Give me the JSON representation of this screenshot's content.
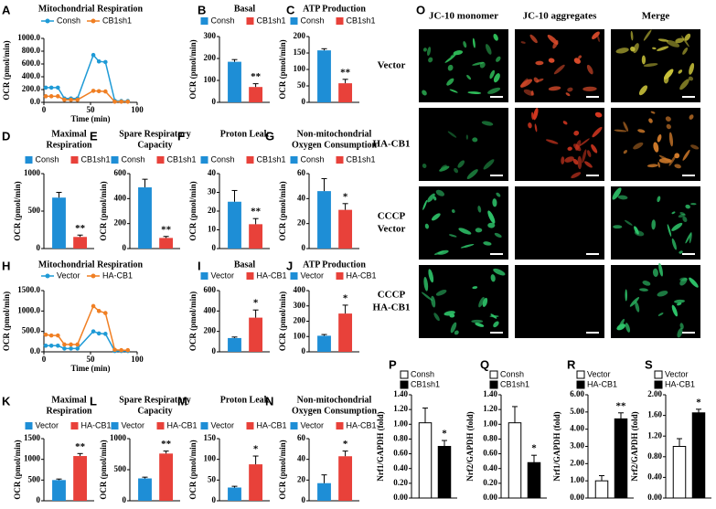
{
  "chart_data": [
    {
      "type": "line",
      "label": "A",
      "title": "Mitochondrial Respiration",
      "xlabel": "Time (min)",
      "ylabel": "OCR (pmol/min)",
      "x": [
        2,
        8,
        15,
        22,
        29,
        36,
        53,
        59,
        66,
        76,
        83,
        90
      ],
      "xlim": [
        0,
        100
      ],
      "xticks": [
        0,
        50,
        100
      ],
      "ylim": [
        0,
        1000
      ],
      "yticks": [
        {
          "value": 0,
          "label": "0.0"
        },
        {
          "value": 200,
          "label": "200.0"
        },
        {
          "value": 400,
          "label": "400.0"
        },
        {
          "value": 600,
          "label": "600.0"
        },
        {
          "value": 800,
          "label": "800.0"
        },
        {
          "value": 1000,
          "label": "1000.0"
        }
      ],
      "series": [
        {
          "name": "Consh",
          "color": "#1e9ad6",
          "values": [
            230,
            230,
            230,
            60,
            60,
            60,
            740,
            640,
            630,
            25,
            20,
            20
          ]
        },
        {
          "name": "CB1sh1",
          "color": "#f07f23",
          "values": [
            95,
            95,
            95,
            40,
            40,
            40,
            180,
            175,
            170,
            10,
            10,
            10
          ]
        }
      ]
    },
    {
      "type": "bar",
      "label": "B",
      "title": "Basal",
      "ylabel": "OCR (pmol/min)",
      "ylim": [
        0,
        300
      ],
      "yticks": [
        0,
        100,
        200,
        300
      ],
      "significance": "**",
      "series": [
        {
          "name": "Consh",
          "color": "#1e8ed6",
          "values": [
            185
          ],
          "errors": [
            10
          ]
        },
        {
          "name": "CB1sh1",
          "color": "#e8413a",
          "values": [
            70
          ],
          "errors": [
            15
          ]
        }
      ]
    },
    {
      "type": "bar",
      "label": "C",
      "title": "ATP Production",
      "ylabel": "OCR (pmol/min)",
      "ylim": [
        0,
        200
      ],
      "yticks": [
        0,
        50,
        100,
        150,
        200
      ],
      "significance": "**",
      "series": [
        {
          "name": "Consh",
          "color": "#1e8ed6",
          "values": [
            158
          ],
          "errors": [
            5
          ]
        },
        {
          "name": "CB1sh1",
          "color": "#e8413a",
          "values": [
            58
          ],
          "errors": [
            12
          ]
        }
      ]
    },
    {
      "type": "bar",
      "label": "D",
      "title": [
        "Maximal",
        "Respiration"
      ],
      "ylabel": "OCR (pmol/min)",
      "ylim": [
        0,
        1000
      ],
      "yticks": [
        0,
        500,
        1000
      ],
      "significance": "**",
      "series": [
        {
          "name": "Consh",
          "color": "#1e8ed6",
          "values": [
            680
          ],
          "errors": [
            70
          ]
        },
        {
          "name": "CB1sh1",
          "color": "#e8413a",
          "values": [
            155
          ],
          "errors": [
            25
          ]
        }
      ]
    },
    {
      "type": "bar",
      "label": "E",
      "title": [
        "Spare Respiratory",
        "Capacity"
      ],
      "ylabel": "OCR (pmol/min)",
      "ylim": [
        0,
        600
      ],
      "yticks": [
        0,
        200,
        400,
        600
      ],
      "significance": "**",
      "series": [
        {
          "name": "Consh",
          "color": "#1e8ed6",
          "values": [
            490
          ],
          "errors": [
            65
          ]
        },
        {
          "name": "CB1sh1",
          "color": "#e8413a",
          "values": [
            85
          ],
          "errors": [
            12
          ]
        }
      ]
    },
    {
      "type": "bar",
      "label": "F",
      "title": "Proton Leak",
      "ylabel": "OCR (pmol/min)",
      "ylim": [
        0,
        40
      ],
      "yticks": [
        0,
        10,
        20,
        30,
        40
      ],
      "significance": "**",
      "series": [
        {
          "name": "Consh",
          "color": "#1e8ed6",
          "values": [
            25
          ],
          "errors": [
            6
          ]
        },
        {
          "name": "CB1sh1",
          "color": "#e8413a",
          "values": [
            13
          ],
          "errors": [
            3
          ]
        }
      ]
    },
    {
      "type": "bar",
      "label": "G",
      "title": [
        "Non-mitochondrial",
        "Oxygen Consumption"
      ],
      "ylabel": "OCR (pmol/min)",
      "ylim": [
        0,
        60
      ],
      "yticks": [
        0,
        20,
        40,
        60
      ],
      "significance": "*",
      "series": [
        {
          "name": "Consh",
          "color": "#1e8ed6",
          "values": [
            46
          ],
          "errors": [
            10
          ]
        },
        {
          "name": "CB1sh1",
          "color": "#e8413a",
          "values": [
            31
          ],
          "errors": [
            5
          ]
        }
      ]
    },
    {
      "type": "line",
      "label": "H",
      "title": "Mitochondrial Respiration",
      "xlabel": "Time (min)",
      "ylabel": "OCR (pmol/min)",
      "x": [
        2,
        8,
        15,
        22,
        29,
        36,
        53,
        59,
        66,
        76,
        83,
        90
      ],
      "xlim": [
        0,
        100
      ],
      "xticks": [
        0,
        50,
        100
      ],
      "ylim": [
        0,
        1500
      ],
      "yticks": [
        {
          "value": 0,
          "label": "0.0"
        },
        {
          "value": 500,
          "label": "500.0"
        },
        {
          "value": 1000,
          "label": "1000.0"
        },
        {
          "value": 1500,
          "label": "1500.0"
        }
      ],
      "series": [
        {
          "name": "Vector",
          "color": "#1e9ad6",
          "values": [
            150,
            150,
            150,
            80,
            80,
            80,
            500,
            450,
            440,
            20,
            20,
            20
          ]
        },
        {
          "name": "HA-CB1",
          "color": "#f07f23",
          "values": [
            420,
            400,
            400,
            180,
            180,
            180,
            1120,
            1000,
            950,
            50,
            40,
            40
          ]
        }
      ]
    },
    {
      "type": "bar",
      "label": "I",
      "title": "Basal",
      "ylabel": "OCR (pmol/min)",
      "ylim": [
        0,
        600
      ],
      "yticks": [
        0,
        200,
        400,
        600
      ],
      "significance": "*",
      "series": [
        {
          "name": "Vector",
          "color": "#1e8ed6",
          "values": [
            135
          ],
          "errors": [
            10
          ]
        },
        {
          "name": "HA-CB1",
          "color": "#e8413a",
          "values": [
            335
          ],
          "errors": [
            75
          ]
        }
      ]
    },
    {
      "type": "bar",
      "label": "J",
      "title": "ATP Production",
      "ylabel": "OCR (pmol/min)",
      "ylim": [
        0,
        400
      ],
      "yticks": [
        0,
        100,
        200,
        300,
        400
      ],
      "significance": "*",
      "series": [
        {
          "name": "Vector",
          "color": "#1e8ed6",
          "values": [
            105
          ],
          "errors": [
            8
          ]
        },
        {
          "name": "HA-CB1",
          "color": "#e8413a",
          "values": [
            250
          ],
          "errors": [
            55
          ]
        }
      ]
    },
    {
      "type": "bar",
      "label": "K",
      "title": [
        "Maximal",
        "Respiration"
      ],
      "ylabel": "OCR (pmol/min)",
      "ylim": [
        0,
        1500
      ],
      "yticks": [
        0,
        500,
        1000,
        1500
      ],
      "significance": "**",
      "series": [
        {
          "name": "Vector",
          "color": "#1e8ed6",
          "values": [
            500
          ],
          "errors": [
            25
          ]
        },
        {
          "name": "HA-CB1",
          "color": "#e8413a",
          "values": [
            1080
          ],
          "errors": [
            60
          ]
        }
      ]
    },
    {
      "type": "bar",
      "label": "L",
      "title": [
        "Spare Respiratory",
        "Capacity"
      ],
      "ylabel": "OCR (pmol/min)",
      "ylim": [
        0,
        1000
      ],
      "yticks": [
        0,
        500,
        1000
      ],
      "significance": "**",
      "series": [
        {
          "name": "Vector",
          "color": "#1e8ed6",
          "values": [
            360
          ],
          "errors": [
            20
          ]
        },
        {
          "name": "HA-CB1",
          "color": "#e8413a",
          "values": [
            760
          ],
          "errors": [
            40
          ]
        }
      ]
    },
    {
      "type": "bar",
      "label": "M",
      "title": "Proton Leak",
      "ylabel": "OCR (pmol/min)",
      "ylim": [
        0,
        150
      ],
      "yticks": [
        0,
        50,
        100,
        150
      ],
      "significance": "*",
      "series": [
        {
          "name": "Vector",
          "color": "#1e8ed6",
          "values": [
            32
          ],
          "errors": [
            3
          ]
        },
        {
          "name": "HA-CB1",
          "color": "#e8413a",
          "values": [
            88
          ],
          "errors": [
            20
          ]
        }
      ]
    },
    {
      "type": "bar",
      "label": "N",
      "title": [
        "Non-mitochondrial",
        "Oxygen Consumption"
      ],
      "ylabel": "OCR (pmol/min)",
      "ylim": [
        0,
        60
      ],
      "yticks": [
        0,
        20,
        40,
        60
      ],
      "significance": "*",
      "series": [
        {
          "name": "Vector",
          "color": "#1e8ed6",
          "values": [
            17
          ],
          "errors": [
            8
          ]
        },
        {
          "name": "HA-CB1",
          "color": "#e8413a",
          "values": [
            43
          ],
          "errors": [
            5
          ]
        }
      ]
    },
    {
      "type": "bar",
      "label": "P",
      "ylabel": "Nrf1/GAPDH (fold)",
      "ylim": [
        0,
        1.4
      ],
      "yticks": [
        {
          "value": 0,
          "label": "0.00"
        },
        {
          "value": 0.2,
          "label": "0.20"
        },
        {
          "value": 0.4,
          "label": "0.40"
        },
        {
          "value": 0.6,
          "label": "0.60"
        },
        {
          "value": 0.8,
          "label": "0.80"
        },
        {
          "value": 1.0,
          "label": "1.00"
        },
        {
          "value": 1.2,
          "label": "1.20"
        },
        {
          "value": 1.4,
          "label": "1.40"
        }
      ],
      "significance": "*",
      "series": [
        {
          "name": "Consh",
          "color": "#ffffff",
          "values": [
            1.02
          ],
          "errors": [
            0.2
          ]
        },
        {
          "name": "CB1sh1",
          "color": "#000000",
          "values": [
            0.7
          ],
          "errors": [
            0.08
          ]
        }
      ]
    },
    {
      "type": "bar",
      "label": "Q",
      "ylabel": "Nrf2/GAPDH (fold)",
      "ylim": [
        0,
        1.4
      ],
      "yticks": [
        {
          "value": 0,
          "label": "0.00"
        },
        {
          "value": 0.2,
          "label": "0.20"
        },
        {
          "value": 0.4,
          "label": "0.40"
        },
        {
          "value": 0.6,
          "label": "0.60"
        },
        {
          "value": 0.8,
          "label": "0.80"
        },
        {
          "value": 1.0,
          "label": "1.00"
        },
        {
          "value": 1.2,
          "label": "1.20"
        },
        {
          "value": 1.4,
          "label": "1.40"
        }
      ],
      "significance": "*",
      "series": [
        {
          "name": "Consh",
          "color": "#ffffff",
          "values": [
            1.02
          ],
          "errors": [
            0.22
          ]
        },
        {
          "name": "CB1sh1",
          "color": "#000000",
          "values": [
            0.48
          ],
          "errors": [
            0.1
          ]
        }
      ]
    },
    {
      "type": "bar",
      "label": "R",
      "ylabel": "Nrf1/GAPDH (fold)",
      "ylim": [
        0,
        6
      ],
      "yticks": [
        {
          "value": 0,
          "label": "0.00"
        },
        {
          "value": 1,
          "label": "1.00"
        },
        {
          "value": 2,
          "label": "2.00"
        },
        {
          "value": 3,
          "label": "3.00"
        },
        {
          "value": 4,
          "label": "4.00"
        },
        {
          "value": 5,
          "label": "5.00"
        },
        {
          "value": 6,
          "label": "6.00"
        }
      ],
      "significance": "**",
      "series": [
        {
          "name": "Vector",
          "color": "#ffffff",
          "values": [
            1.0
          ],
          "errors": [
            0.3
          ]
        },
        {
          "name": "HA-CB1",
          "color": "#000000",
          "values": [
            4.6
          ],
          "errors": [
            0.35
          ]
        }
      ]
    },
    {
      "type": "bar",
      "label": "S",
      "ylabel": "Nrf2/GAPDH (fold)",
      "ylim": [
        0,
        2
      ],
      "yticks": [
        {
          "value": 0,
          "label": "0.00"
        },
        {
          "value": 0.4,
          "label": "0.40"
        },
        {
          "value": 0.8,
          "label": "0.80"
        },
        {
          "value": 1.2,
          "label": "1.20"
        },
        {
          "value": 1.6,
          "label": "1.60"
        },
        {
          "value": 2.0,
          "label": "2.00"
        }
      ],
      "significance": "*",
      "series": [
        {
          "name": "Vector",
          "color": "#ffffff",
          "values": [
            1.0
          ],
          "errors": [
            0.15
          ]
        },
        {
          "name": "HA-CB1",
          "color": "#000000",
          "values": [
            1.65
          ],
          "errors": [
            0.07
          ]
        }
      ]
    }
  ],
  "microscopy": {
    "label": "O",
    "columns": [
      "JC-10 monomer",
      "JC-10 aggregates",
      "Merge"
    ],
    "rows": [
      [
        "Vector"
      ],
      [
        "HA-CB1"
      ],
      [
        "CCCP",
        "Vector"
      ],
      [
        "CCCP",
        "HA-CB1"
      ]
    ]
  }
}
